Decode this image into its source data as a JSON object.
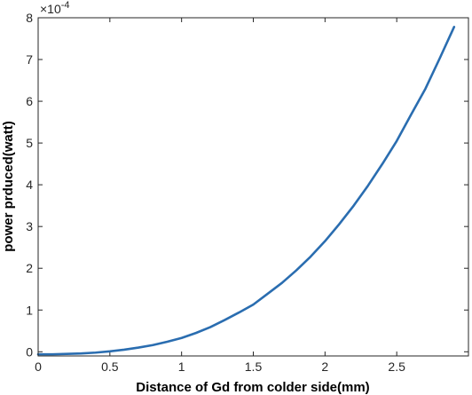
{
  "chart_data": {
    "type": "line",
    "title": "",
    "xlabel": "Distance of Gd from colder side(mm)",
    "ylabel": "power prduced(watt)",
    "y_exponent_label": "×10",
    "y_exponent_power": "-4",
    "xlim": [
      0,
      3.0
    ],
    "ylim": [
      -0.1,
      8
    ],
    "x_ticks": [
      0,
      0.5,
      1,
      1.5,
      2,
      2.5
    ],
    "x_tick_labels": [
      "0",
      "0.5",
      "1",
      "1.5",
      "2",
      "2.5"
    ],
    "y_ticks": [
      0,
      1,
      2,
      3,
      4,
      5,
      6,
      7,
      8
    ],
    "y_tick_labels": [
      "0",
      "1",
      "2",
      "3",
      "4",
      "5",
      "6",
      "7",
      "8"
    ],
    "y_scale_factor": 0.0001,
    "grid": false,
    "box": true,
    "line_color": "#2a6db0",
    "series": [
      {
        "x": [
          0,
          0.1,
          0.2,
          0.3,
          0.4,
          0.5,
          0.6,
          0.7,
          0.8,
          0.9,
          1.0,
          1.1,
          1.2,
          1.3,
          1.4,
          1.5,
          1.6,
          1.7,
          1.8,
          1.9,
          2.0,
          2.1,
          2.2,
          2.3,
          2.4,
          2.5,
          2.6,
          2.7,
          2.8,
          2.9
        ],
        "y": [
          -0.06,
          -0.06,
          -0.05,
          -0.04,
          -0.02,
          0.01,
          0.05,
          0.1,
          0.16,
          0.24,
          0.33,
          0.45,
          0.59,
          0.76,
          0.94,
          1.13,
          1.39,
          1.65,
          1.95,
          2.28,
          2.65,
          3.06,
          3.5,
          3.98,
          4.5,
          5.05,
          5.68,
          6.3,
          7.03,
          7.78
        ]
      }
    ]
  }
}
